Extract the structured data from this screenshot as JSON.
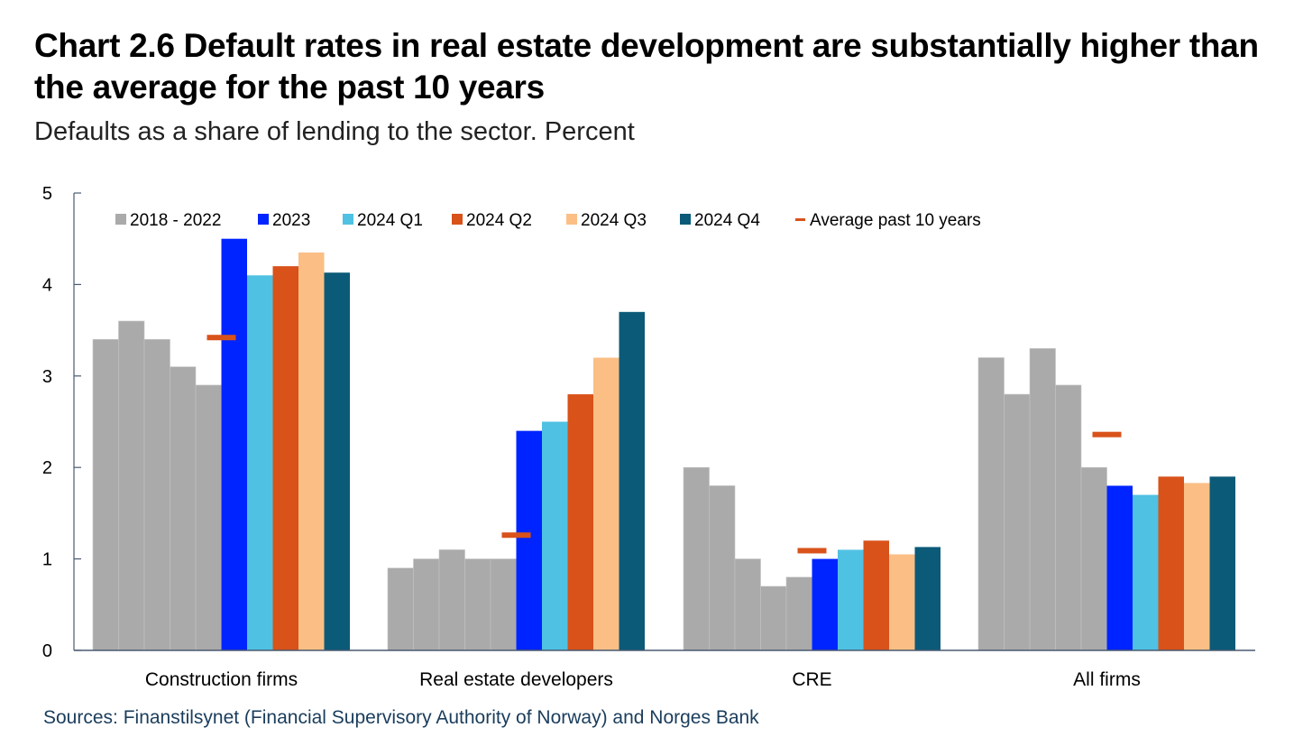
{
  "title": "Chart 2.6 Default rates in real estate development are substantially higher than the average for the past 10 years",
  "subtitle": "Defaults as a share of lending to the sector. Percent",
  "source": "Sources: Finanstilsynet (Financial Supervisory Authority of Norway) and Norges Bank",
  "chart_data": {
    "type": "bar",
    "title": "Chart 2.6 Default rates in real estate development are substantially higher than the average for the past 10 years",
    "subtitle": "Defaults as a share of lending to the sector. Percent",
    "xlabel": "",
    "ylabel": "Percent",
    "ylim": [
      0,
      5
    ],
    "yticks": [
      "0",
      "1",
      "2",
      "3",
      "4",
      "5"
    ],
    "grid": false,
    "legend_position": "top-left inside",
    "categories": [
      "Construction firms",
      "Real estate developers",
      "CRE",
      "All firms"
    ],
    "series": [
      {
        "name": "2018 - 2022",
        "color": "#aaaaaa",
        "annual": true,
        "values": [
          [
            3.4,
            3.6,
            3.4,
            3.1,
            2.9
          ],
          [
            0.9,
            1.0,
            1.1,
            1.0,
            1.0
          ],
          [
            2.0,
            1.8,
            1.0,
            0.7,
            0.8
          ],
          [
            3.2,
            2.8,
            3.3,
            2.9,
            2.0
          ]
        ]
      },
      {
        "name": "2023",
        "color": "#0024ff",
        "values": [
          4.5,
          2.4,
          1.0,
          1.8
        ]
      },
      {
        "name": "2024 Q1",
        "color": "#4fc1e3",
        "values": [
          4.1,
          2.5,
          1.1,
          1.7
        ]
      },
      {
        "name": "2024 Q2",
        "color": "#d8521a",
        "values": [
          4.2,
          2.8,
          1.2,
          1.9
        ]
      },
      {
        "name": "2024 Q3",
        "color": "#fbbf85",
        "values": [
          4.35,
          3.2,
          1.05,
          1.83
        ]
      },
      {
        "name": "2024 Q4",
        "color": "#0b5a78",
        "values": [
          4.13,
          3.7,
          1.13,
          1.9
        ]
      }
    ],
    "average_marker": {
      "name": "Average past 10 years",
      "color": "#d8521a",
      "values": [
        3.42,
        1.26,
        1.09,
        2.36
      ]
    }
  }
}
